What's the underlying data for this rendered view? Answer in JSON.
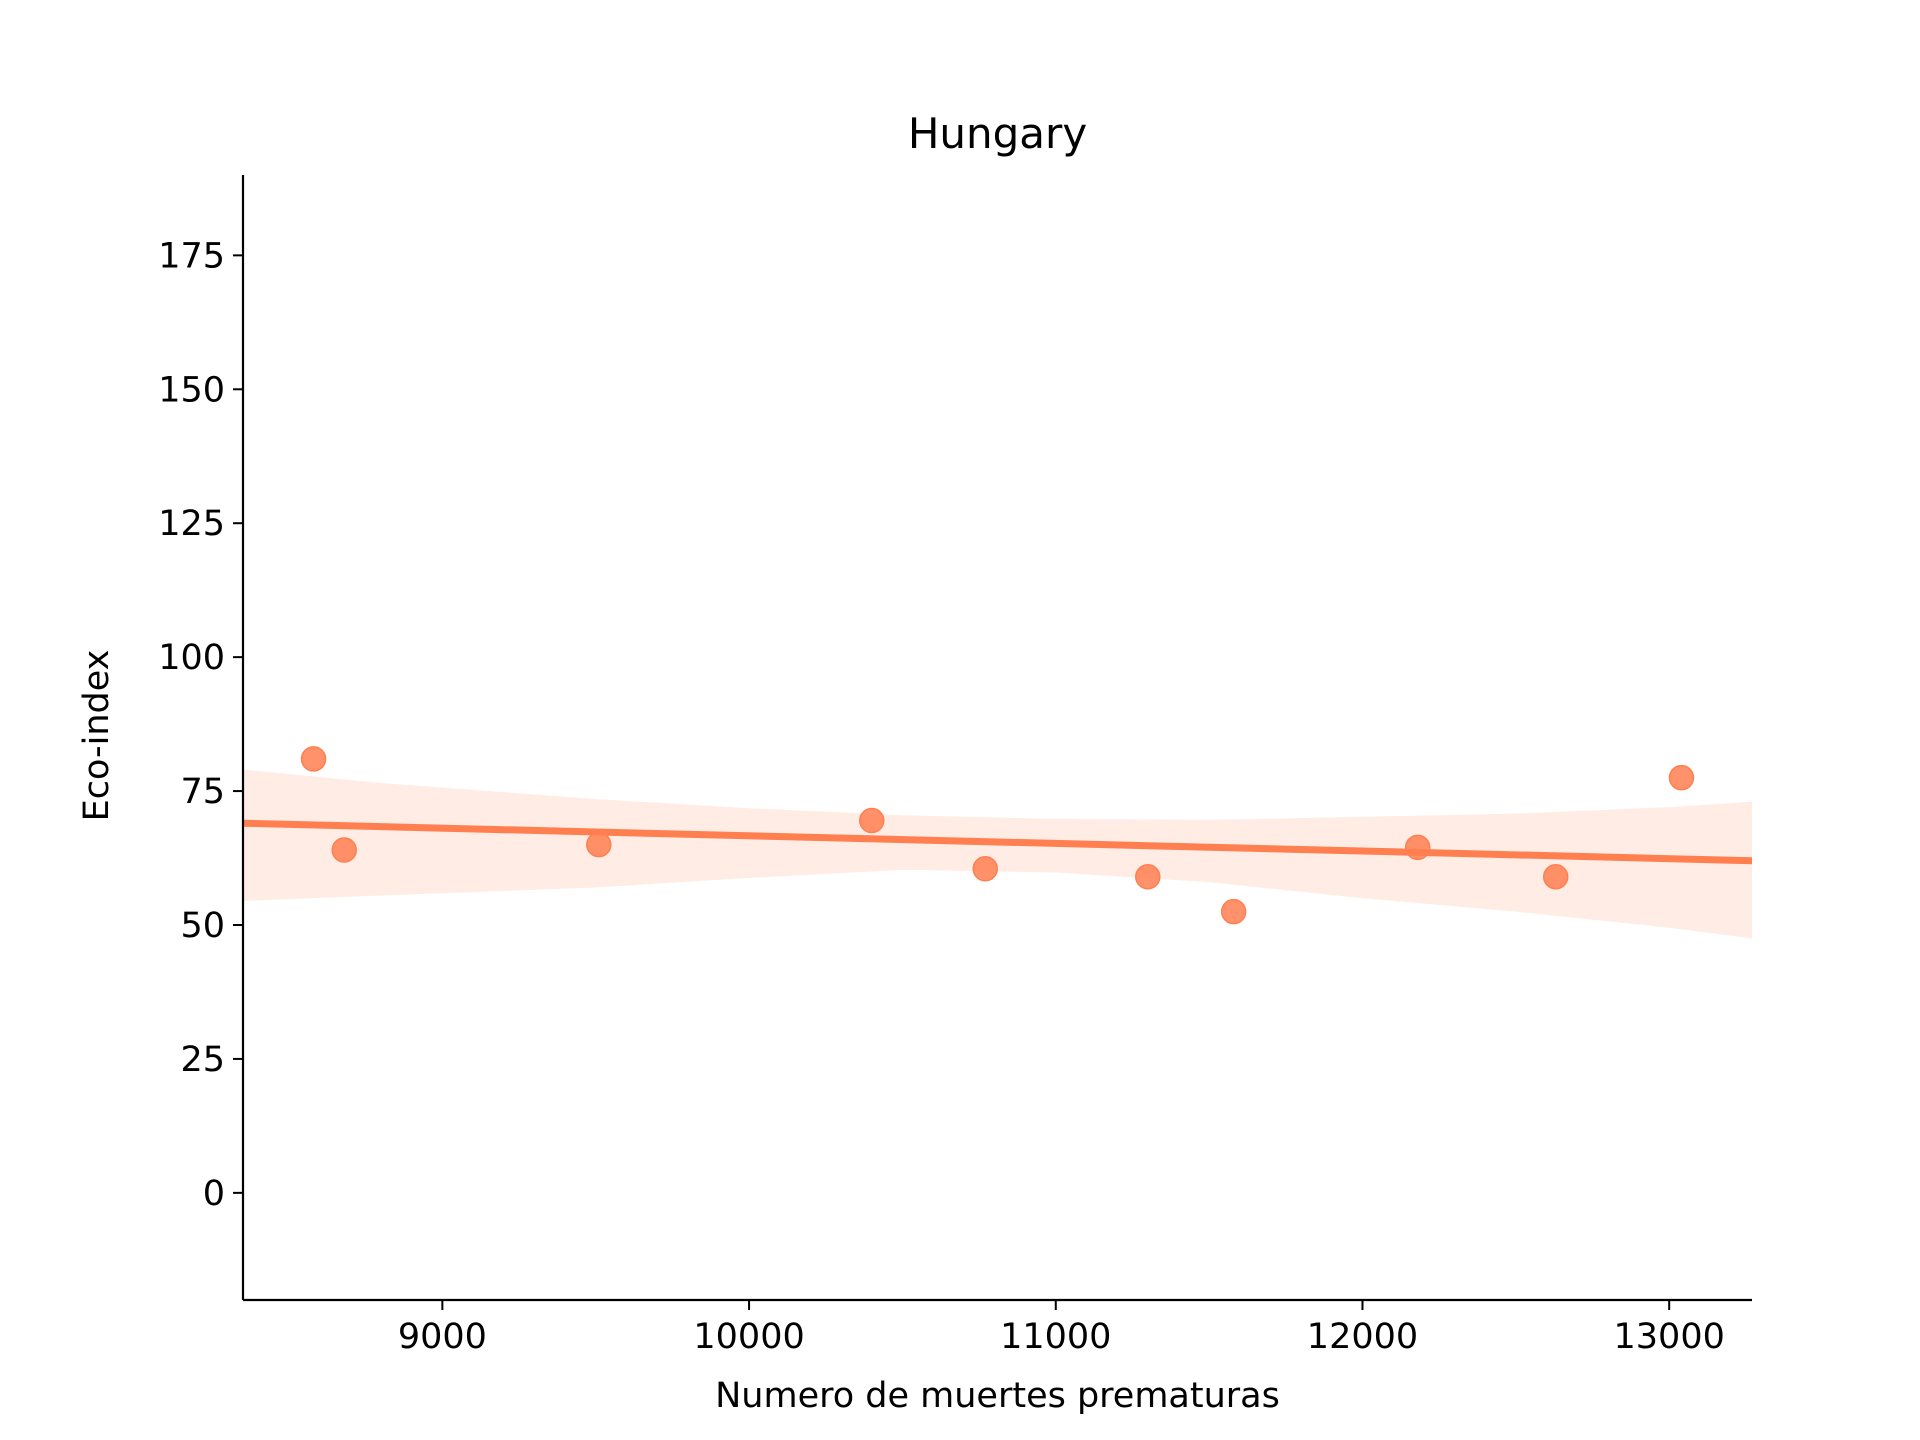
{
  "chart_data": {
    "type": "scatter",
    "title": "Hungary",
    "xlabel": "Numero de muertes prematuras",
    "ylabel": "Eco-index",
    "xlim": [
      8350,
      13270
    ],
    "ylim": [
      -20,
      190
    ],
    "xticks": [
      9000,
      10000,
      11000,
      12000,
      13000
    ],
    "xtick_labels": [
      "9000",
      "10000",
      "11000",
      "12000",
      "13000"
    ],
    "yticks": [
      0,
      25,
      50,
      75,
      100,
      125,
      150,
      175
    ],
    "ytick_labels": [
      "0",
      "25",
      "50",
      "75",
      "100",
      "125",
      "150",
      "175"
    ],
    "grid": false,
    "legend": "none",
    "color": "#FF7F50",
    "points": [
      {
        "x": 8580,
        "y": 81.0
      },
      {
        "x": 8680,
        "y": 64.0
      },
      {
        "x": 9510,
        "y": 65.0
      },
      {
        "x": 10400,
        "y": 69.5
      },
      {
        "x": 10770,
        "y": 60.5
      },
      {
        "x": 11300,
        "y": 59.0
      },
      {
        "x": 11580,
        "y": 52.5
      },
      {
        "x": 12180,
        "y": 64.5
      },
      {
        "x": 12630,
        "y": 59.0
      },
      {
        "x": 13040,
        "y": 77.5
      }
    ],
    "regression": {
      "x": [
        8350,
        13270
      ],
      "y": [
        69.0,
        62.0
      ]
    },
    "confidence_band": {
      "x": [
        8350,
        8800,
        9500,
        10000,
        10500,
        11000,
        11500,
        12000,
        12500,
        13000,
        13270
      ],
      "upper": [
        79.0,
        76.5,
        73.5,
        71.8,
        70.5,
        69.8,
        69.6,
        70.2,
        70.8,
        72.0,
        73.0
      ],
      "lower": [
        54.5,
        55.5,
        57.0,
        58.8,
        60.3,
        59.8,
        58.0,
        55.0,
        52.5,
        49.5,
        47.5
      ]
    }
  }
}
